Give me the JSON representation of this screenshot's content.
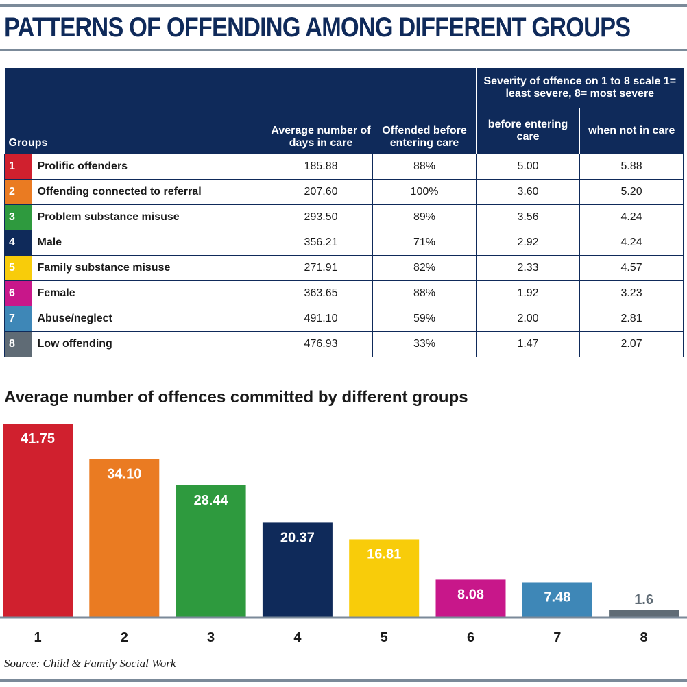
{
  "title": "PATTERNS OF OFFENDING AMONG DIFFERENT GROUPS",
  "table": {
    "headers": {
      "groups": "Groups",
      "days": "Average number of days in care",
      "offended": "Offended before entering care",
      "severity": "Severity of offence on 1 to 8 scale 1= least severe, 8= most severe",
      "before": "before entering care",
      "not_in_care": "when not in care"
    },
    "rows": [
      {
        "num": "1",
        "color": "#d0202e",
        "group": "Prolific offenders",
        "days": "185.88",
        "offended": "88%",
        "before": "5.00",
        "not_in_care": "5.88"
      },
      {
        "num": "2",
        "color": "#ea7b22",
        "group": "Offending connected to referral",
        "days": "207.60",
        "offended": "100%",
        "before": "3.60",
        "not_in_care": "5.20"
      },
      {
        "num": "3",
        "color": "#2e9a3e",
        "group": "Problem substance misuse",
        "days": "293.50",
        "offended": "89%",
        "before": "3.56",
        "not_in_care": "4.24"
      },
      {
        "num": "4",
        "color": "#0f2a5a",
        "group": "Male",
        "days": "356.21",
        "offended": "71%",
        "before": "2.92",
        "not_in_care": "4.24"
      },
      {
        "num": "5",
        "color": "#f8cc0a",
        "group": "Family substance misuse",
        "days": "271.91",
        "offended": "82%",
        "before": "2.33",
        "not_in_care": "4.57"
      },
      {
        "num": "6",
        "color": "#c8178a",
        "group": "Female",
        "days": "363.65",
        "offended": "88%",
        "before": "1.92",
        "not_in_care": "3.23"
      },
      {
        "num": "7",
        "color": "#3e87b7",
        "group": "Abuse/neglect",
        "days": "491.10",
        "offended": "59%",
        "before": "2.00",
        "not_in_care": "2.81"
      },
      {
        "num": "8",
        "color": "#5f6b75",
        "group": "Low offending",
        "days": "476.93",
        "offended": "33%",
        "before": "1.47",
        "not_in_care": "2.07"
      }
    ]
  },
  "chart_data": {
    "type": "bar",
    "title": "Average number of offences committed by different groups",
    "categories": [
      "1",
      "2",
      "3",
      "4",
      "5",
      "6",
      "7",
      "8"
    ],
    "values": [
      41.75,
      34.1,
      28.44,
      20.37,
      16.81,
      8.08,
      7.48,
      1.6
    ],
    "value_labels": [
      "41.75",
      "34.10",
      "28.44",
      "20.37",
      "16.81",
      "8.08",
      "7.48",
      "1.6"
    ],
    "colors": [
      "#d0202e",
      "#ea7b22",
      "#2e9a3e",
      "#0f2a5a",
      "#f8cc0a",
      "#c8178a",
      "#3e87b7",
      "#5f6b75"
    ],
    "xlabel": "",
    "ylabel": "",
    "ylim": [
      0,
      41.75
    ],
    "grid": false
  },
  "source": "Source: Child & Family Social Work"
}
